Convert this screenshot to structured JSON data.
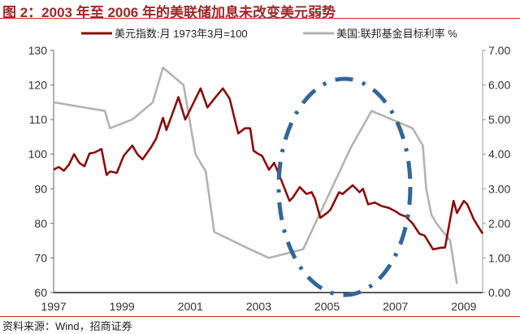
{
  "title": "图 2：2003 年至 2006 年的美联储加息未改变美元弱势",
  "source": "资料来源：Wind，招商证券",
  "colors": {
    "title": "#a0282a",
    "dollar": "#8b0d0d",
    "fed": "#b3b3b3",
    "ellipse": "#336699"
  },
  "chart_data": {
    "type": "line",
    "title": "图 2：2003 年至 2006 年的美联储加息未改变美元弱势",
    "legend_position": "top",
    "grid": false,
    "x_ticks": [
      "1997",
      "1999",
      "2001",
      "2003",
      "2005",
      "2007",
      "2009"
    ],
    "xlim": [
      1997,
      2009.55
    ],
    "y_left": {
      "ylim": [
        60,
        130
      ],
      "ticks": [
        "60",
        "70",
        "80",
        "90",
        "100",
        "110",
        "120",
        "130"
      ]
    },
    "y_right": {
      "ylim": [
        0,
        7
      ],
      "ticks": [
        "0.00",
        "1.00",
        "2.00",
        "3.00",
        "4.00",
        "5.00",
        "6.00",
        "7.00"
      ]
    },
    "series": [
      {
        "name": "美元指数:月 1973年3月=100",
        "axis": "left",
        "x": [
          1997.0,
          1997.15,
          1997.3,
          1997.45,
          1997.6,
          1997.75,
          1997.9,
          1998.05,
          1998.2,
          1998.4,
          1998.55,
          1998.65,
          1998.85,
          1999.05,
          1999.3,
          1999.45,
          1999.6,
          1999.85,
          2000.0,
          2000.2,
          2000.3,
          2000.45,
          2000.65,
          2000.85,
          2001.0,
          2001.3,
          2001.5,
          2001.7,
          2001.95,
          2002.15,
          2002.4,
          2002.6,
          2002.75,
          2002.85,
          2003.0,
          2003.1,
          2003.3,
          2003.45,
          2003.6,
          2003.9,
          2004.0,
          2004.2,
          2004.4,
          2004.55,
          2004.65,
          2004.8,
          2005.0,
          2005.1,
          2005.35,
          2005.45,
          2005.75,
          2005.95,
          2006.05,
          2006.2,
          2006.4,
          2006.6,
          2006.8,
          2007.0,
          2007.15,
          2007.3,
          2007.5,
          2007.7,
          2007.85,
          2008.1,
          2008.35,
          2008.45,
          2008.7,
          2008.8,
          2009.0,
          2009.1,
          2009.3,
          2009.55
        ],
        "values": [
          95.5,
          96.3,
          95.2,
          97,
          100,
          97.5,
          96.5,
          100.2,
          100.5,
          101.5,
          94,
          95,
          94.6,
          99.5,
          102.5,
          100,
          98.5,
          102,
          104.5,
          110.5,
          107,
          111,
          116.5,
          110,
          113,
          119,
          113.5,
          116,
          119,
          116,
          106,
          107.5,
          107.5,
          101,
          100,
          99.5,
          95.5,
          97.5,
          94,
          86.5,
          87.5,
          90.5,
          88.5,
          89,
          87,
          81.6,
          83,
          84,
          89,
          88.5,
          91,
          89,
          90,
          85.5,
          86,
          85,
          84.5,
          83.5,
          82.5,
          82,
          80,
          77,
          76.5,
          72.5,
          73,
          73,
          86.5,
          83,
          86.5,
          85.5,
          81,
          77
        ]
      },
      {
        "name": "美国:联邦基金目标利率 %",
        "axis": "right",
        "x": [
          1997.0,
          1998.5,
          1998.65,
          1999.3,
          1999.9,
          2000.2,
          2000.8,
          2001.15,
          2001.45,
          2001.7,
          2002.75,
          2003.3,
          2004.3,
          2005.7,
          2006.3,
          2007.5,
          2007.8,
          2007.9,
          2008.05,
          2008.2,
          2008.6,
          2008.8
        ],
        "values": [
          5.5,
          5.25,
          4.75,
          5.0,
          5.5,
          6.5,
          6.0,
          4.0,
          3.5,
          1.75,
          1.25,
          1.0,
          1.25,
          4.2,
          5.25,
          4.75,
          4.25,
          3.0,
          2.25,
          2.0,
          1.5,
          0.25
        ]
      }
    ]
  }
}
